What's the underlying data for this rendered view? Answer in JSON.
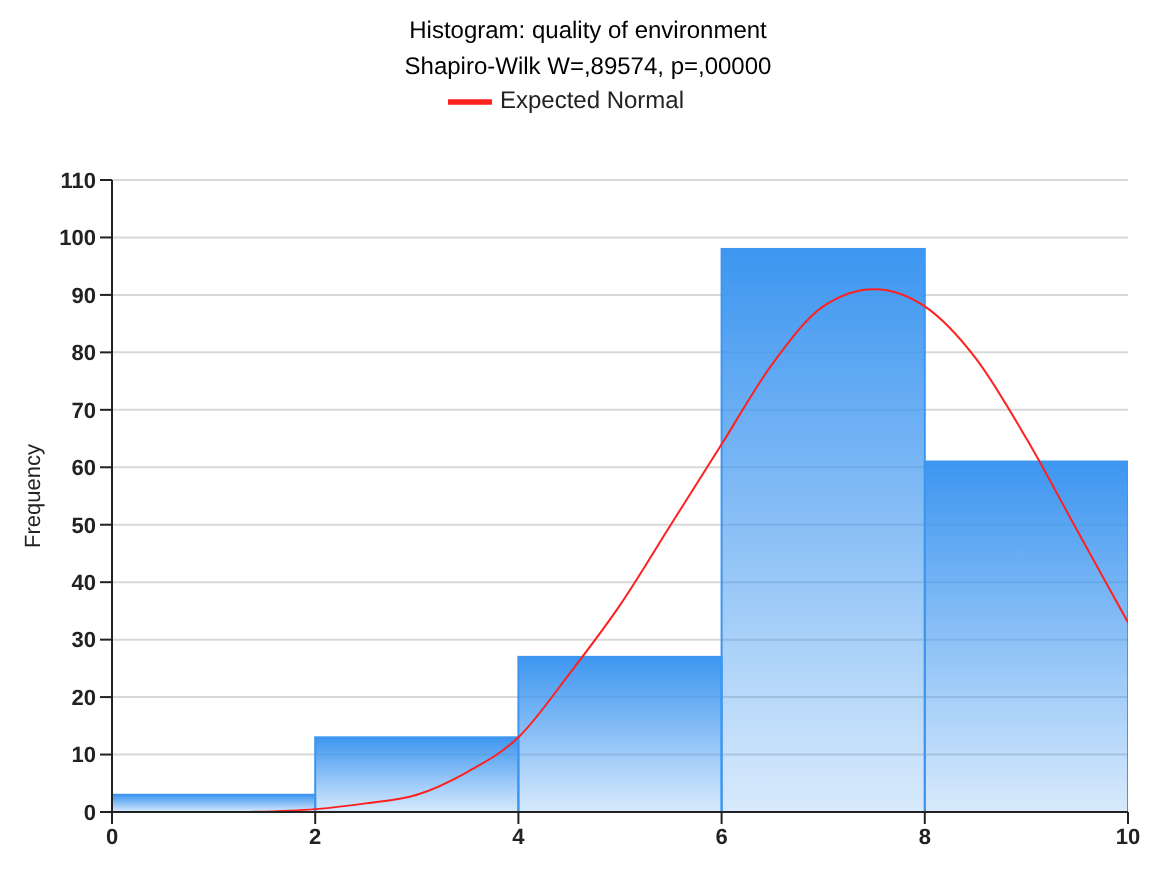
{
  "chart_data": {
    "type": "histogram",
    "title": "Histogram:  quality of environment",
    "subtitle": "Shapiro-Wilk W=,89574, p=,00000",
    "ylabel": "Frequency",
    "bins": [
      0,
      2,
      4,
      6,
      8,
      10
    ],
    "values": [
      3,
      13,
      27,
      98,
      61
    ],
    "color": "#3d96f0",
    "series": [
      {
        "type": "line",
        "name": "Expected Normal",
        "color": "#ff2020",
        "x": [
          1.3,
          2,
          2.5,
          3,
          3.5,
          4,
          4.5,
          5,
          5.5,
          6,
          6.5,
          7,
          7.5,
          8,
          8.5,
          9,
          9.5,
          10
        ],
        "values": [
          0,
          0.5,
          1.5,
          3,
          7,
          13,
          24,
          36,
          50,
          64,
          78,
          88,
          91,
          88,
          79,
          65,
          49,
          33
        ]
      }
    ],
    "xlim": [
      0,
      10
    ],
    "xticks": [
      0,
      2,
      4,
      6,
      8,
      10
    ],
    "ylim": [
      0,
      110
    ],
    "yticks": [
      0,
      10,
      20,
      30,
      40,
      50,
      60,
      70,
      80,
      90,
      100,
      110
    ],
    "grid": "y",
    "legend": "top"
  }
}
